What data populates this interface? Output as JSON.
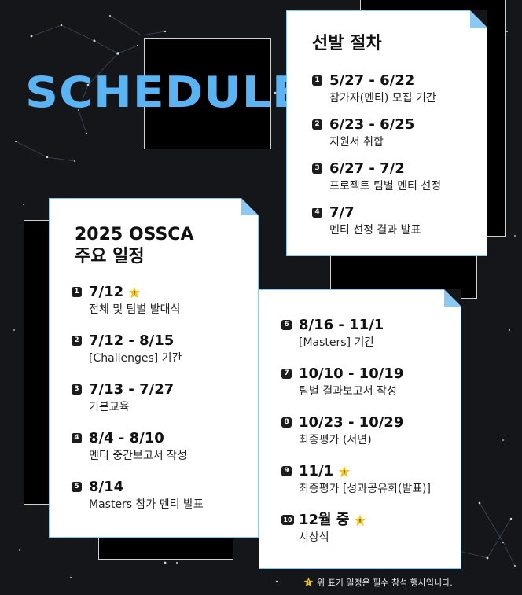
{
  "title": "SCHEDULE",
  "selection": {
    "heading": "선발 절차",
    "items": [
      {
        "num": "1",
        "date": "5/27 - 6/22",
        "desc": "참가자(멘티) 모집 기간"
      },
      {
        "num": "2",
        "date": "6/23 - 6/25",
        "desc": "지원서 취합"
      },
      {
        "num": "3",
        "date": "6/27 - 7/2",
        "desc": "프로젝트 팀별 멘티 선정"
      },
      {
        "num": "4",
        "date": "7/7",
        "desc": "멘티 선정 결과 발표"
      }
    ]
  },
  "main": {
    "heading_line1": "2025 OSSCA",
    "heading_line2": "주요 일정",
    "items": [
      {
        "num": "1",
        "date": "7/12",
        "desc": "전체 및 팀별 발대식",
        "required": true
      },
      {
        "num": "2",
        "date": "7/12 - 8/15",
        "desc": "[Challenges] 기간"
      },
      {
        "num": "3",
        "date": "7/13 - 7/27",
        "desc": "기본교육"
      },
      {
        "num": "4",
        "date": "8/4 - 8/10",
        "desc": "멘티 중간보고서 작성"
      },
      {
        "num": "5",
        "date": "8/14",
        "desc": "Masters 참가 멘티 발표"
      }
    ]
  },
  "second": {
    "items": [
      {
        "num": "6",
        "date": "8/16 - 11/1",
        "desc": "[Masters] 기간"
      },
      {
        "num": "7",
        "date": "10/10 - 10/19",
        "desc": "팀별 결과보고서 작성"
      },
      {
        "num": "8",
        "date": "10/23 - 10/29",
        "desc": "최종평가 (서면)"
      },
      {
        "num": "9",
        "date": "11/1",
        "desc": "최종평가 [성과공유회(발표)]",
        "required": true
      },
      {
        "num": "10",
        "date": "12월 중",
        "desc": "시상식",
        "required": true
      }
    ]
  },
  "footnote": "위 표기 일정은 필수 참석 행사입니다.",
  "colors": {
    "accent": "#5ab4f4",
    "background": "#15161a",
    "star": "#f5c518"
  }
}
